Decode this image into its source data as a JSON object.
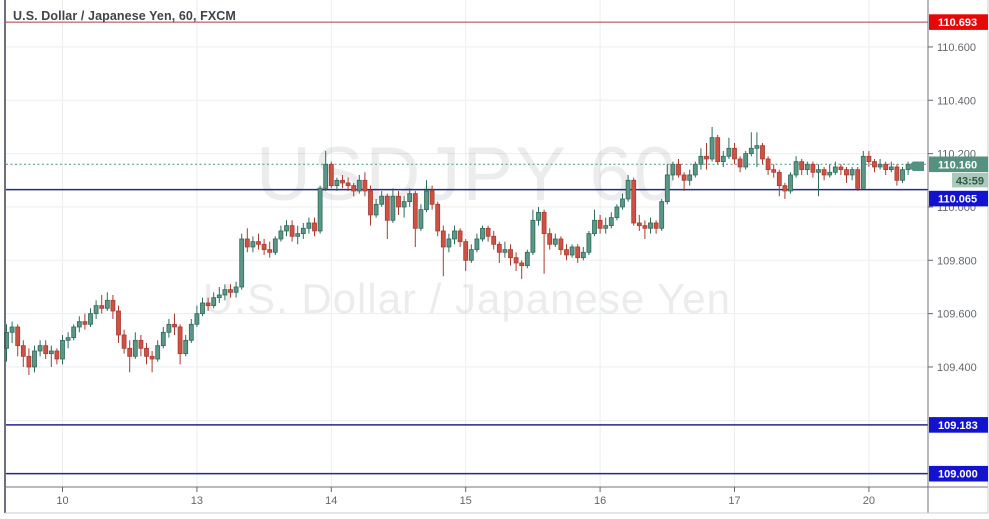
{
  "header": {
    "symbol_title": "U.S. Dollar / Japanese Yen, 60, FXCM"
  },
  "watermark": {
    "line1": "USDJPY 60",
    "line2": "U.S. Dollar / Japanese Yen"
  },
  "colors": {
    "bg": "#ffffff",
    "grid": "#ebedef",
    "axis_text": "#62666e",
    "axis_border": "#6f737e",
    "pane_left_border": "#494d57",
    "outer_border": "#c9ccd2",
    "watermark": "rgba(95,100,110,0.12)",
    "up_fill": "#5b9687",
    "up_stroke": "#2e6b5b",
    "down_fill": "#cf5144",
    "down_stroke": "#a83b31"
  },
  "chart_data": {
    "type": "candlestick",
    "symbol": "USDJPY",
    "interval": "60",
    "exchange": "FXCM",
    "title": "U.S. Dollar / Japanese Yen, 60, FXCM",
    "ylim": [
      108.95,
      110.776
    ],
    "ohlc_format": [
      "open",
      "high",
      "low",
      "close"
    ],
    "price_ticks": [
      {
        "label": "110.600",
        "price": 110.6,
        "show": true
      },
      {
        "label": "110.400",
        "price": 110.4,
        "show": true
      },
      {
        "label": "110.200",
        "price": 110.2,
        "show": true
      },
      {
        "label": "110.000",
        "price": 110.0,
        "show": true
      },
      {
        "label": "109.800",
        "price": 109.8,
        "show": true
      },
      {
        "label": "109.600",
        "price": 109.6,
        "show": true
      },
      {
        "label": "109.400",
        "price": 109.4,
        "show": true
      },
      {
        "label": "109.200",
        "price": 109.2,
        "show": false
      },
      {
        "label": "109.000",
        "price": 109.0,
        "show": false
      }
    ],
    "time_ticks": [
      {
        "label": "10",
        "index": 10
      },
      {
        "label": "13",
        "index": 34
      },
      {
        "label": "14",
        "index": 58
      },
      {
        "label": "15",
        "index": 82
      },
      {
        "label": "16",
        "index": 106
      },
      {
        "label": "17",
        "index": 130
      },
      {
        "label": "20",
        "index": 154
      }
    ],
    "last_price": {
      "value": 110.16,
      "label": "110.160",
      "line_color": "#55917f",
      "badge_bg": "#55917f",
      "badge_fg": "#ffffff",
      "countdown": {
        "label": "43:59",
        "bg": "#abc8ba",
        "fg": "#2c5948"
      }
    },
    "levels": [
      {
        "name": "alert-line",
        "price": 110.693,
        "line_color": "#b13b42",
        "line_style": "solid",
        "line_width": 1,
        "badge": {
          "label": "110.693",
          "bg": "#e60707",
          "fg": "#ffffff"
        },
        "badge_dy": 0
      },
      {
        "name": "level-line-110065",
        "price": 110.065,
        "line_color": "#26268c",
        "line_style": "solid",
        "line_width": 1.5,
        "badge": {
          "label": "110.065",
          "bg": "#1212cf",
          "fg": "#ffffff"
        },
        "badge_dy": 9
      },
      {
        "name": "level-line-109183",
        "price": 109.183,
        "line_color": "#26268c",
        "line_style": "solid",
        "line_width": 1.5,
        "badge": {
          "label": "109.183",
          "bg": "#1212cf",
          "fg": "#ffffff"
        },
        "badge_dy": 0
      },
      {
        "name": "level-line-109000",
        "price": 109.0,
        "line_color": "#26268c",
        "line_style": "solid",
        "line_width": 1.5,
        "badge": {
          "label": "109.000",
          "bg": "#1212cf",
          "fg": "#ffffff"
        },
        "badge_dy": 0
      }
    ],
    "ohlc": [
      [
        109.47,
        109.56,
        109.42,
        109.53
      ],
      [
        109.53,
        109.57,
        109.49,
        109.55
      ],
      [
        109.55,
        109.56,
        109.44,
        109.48
      ],
      [
        109.48,
        109.5,
        109.4,
        109.44
      ],
      [
        109.44,
        109.47,
        109.37,
        109.4
      ],
      [
        109.4,
        109.48,
        109.38,
        109.46
      ],
      [
        109.46,
        109.5,
        109.44,
        109.48
      ],
      [
        109.48,
        109.5,
        109.43,
        109.45
      ],
      [
        109.45,
        109.48,
        109.4,
        109.46
      ],
      [
        109.46,
        109.47,
        109.41,
        109.43
      ],
      [
        109.43,
        109.52,
        109.41,
        109.5
      ],
      [
        109.5,
        109.53,
        109.47,
        109.51
      ],
      [
        109.51,
        109.56,
        109.5,
        109.55
      ],
      [
        109.55,
        109.59,
        109.53,
        109.57
      ],
      [
        109.57,
        109.6,
        109.54,
        109.56
      ],
      [
        109.56,
        109.62,
        109.55,
        109.6
      ],
      [
        109.6,
        109.65,
        109.58,
        109.63
      ],
      [
        109.63,
        109.67,
        109.6,
        109.62
      ],
      [
        109.62,
        109.68,
        109.61,
        109.65
      ],
      [
        109.65,
        109.67,
        109.58,
        109.61
      ],
      [
        109.61,
        109.63,
        109.49,
        109.52
      ],
      [
        109.52,
        109.54,
        109.45,
        109.47
      ],
      [
        109.47,
        109.5,
        109.38,
        109.44
      ],
      [
        109.44,
        109.53,
        109.43,
        109.5
      ],
      [
        109.5,
        109.52,
        109.44,
        109.47
      ],
      [
        109.47,
        109.49,
        109.41,
        109.44
      ],
      [
        109.44,
        109.46,
        109.38,
        109.43
      ],
      [
        109.43,
        109.5,
        109.42,
        109.48
      ],
      [
        109.48,
        109.55,
        109.47,
        109.53
      ],
      [
        109.53,
        109.58,
        109.51,
        109.56
      ],
      [
        109.56,
        109.6,
        109.52,
        109.55
      ],
      [
        109.55,
        109.56,
        109.41,
        109.45
      ],
      [
        109.45,
        109.52,
        109.44,
        109.5
      ],
      [
        109.5,
        109.58,
        109.49,
        109.56
      ],
      [
        109.56,
        109.63,
        109.55,
        109.6
      ],
      [
        109.6,
        109.66,
        109.59,
        109.64
      ],
      [
        109.64,
        109.66,
        109.61,
        109.63
      ],
      [
        109.63,
        109.68,
        109.62,
        109.66
      ],
      [
        109.66,
        109.7,
        109.64,
        109.67
      ],
      [
        109.67,
        109.71,
        109.65,
        109.69
      ],
      [
        109.69,
        109.71,
        109.66,
        109.68
      ],
      [
        109.68,
        109.72,
        109.66,
        109.7
      ],
      [
        109.7,
        109.9,
        109.69,
        109.88
      ],
      [
        109.88,
        109.92,
        109.83,
        109.85
      ],
      [
        109.85,
        109.89,
        109.83,
        109.87
      ],
      [
        109.87,
        109.9,
        109.84,
        109.86
      ],
      [
        109.86,
        109.88,
        109.82,
        109.84
      ],
      [
        109.84,
        109.87,
        109.81,
        109.83
      ],
      [
        109.83,
        109.89,
        109.82,
        109.88
      ],
      [
        109.88,
        109.93,
        109.87,
        109.91
      ],
      [
        109.91,
        109.95,
        109.89,
        109.93
      ],
      [
        109.93,
        109.95,
        109.87,
        109.89
      ],
      [
        109.89,
        109.93,
        109.86,
        109.9
      ],
      [
        109.9,
        109.94,
        109.88,
        109.92
      ],
      [
        109.92,
        109.96,
        109.9,
        109.94
      ],
      [
        109.94,
        109.96,
        109.89,
        109.91
      ],
      [
        109.91,
        110.08,
        109.9,
        110.07
      ],
      [
        110.07,
        110.21,
        110.06,
        110.16
      ],
      [
        110.16,
        110.17,
        110.07,
        110.08
      ],
      [
        110.08,
        110.11,
        110.06,
        110.1
      ],
      [
        110.1,
        110.12,
        110.07,
        110.09
      ],
      [
        110.09,
        110.11,
        110.06,
        110.08
      ],
      [
        110.08,
        110.09,
        110.04,
        110.06
      ],
      [
        110.06,
        110.12,
        110.05,
        110.1
      ],
      [
        110.1,
        110.13,
        110.04,
        110.06
      ],
      [
        110.06,
        110.08,
        109.93,
        109.97
      ],
      [
        109.97,
        110.03,
        109.96,
        110.01
      ],
      [
        110.01,
        110.06,
        110.0,
        110.04
      ],
      [
        110.04,
        110.05,
        109.88,
        109.95
      ],
      [
        109.95,
        110.07,
        109.94,
        110.04
      ],
      [
        110.04,
        110.06,
        109.97,
        110.0
      ],
      [
        110.0,
        110.04,
        109.96,
        110.02
      ],
      [
        110.02,
        110.07,
        110.0,
        110.05
      ],
      [
        110.05,
        110.06,
        109.85,
        109.92
      ],
      [
        109.92,
        110.01,
        109.91,
        109.99
      ],
      [
        109.99,
        110.1,
        109.98,
        110.06
      ],
      [
        110.06,
        110.08,
        109.99,
        110.01
      ],
      [
        110.01,
        110.02,
        109.89,
        109.91
      ],
      [
        109.91,
        109.93,
        109.74,
        109.85
      ],
      [
        109.85,
        109.9,
        109.83,
        109.88
      ],
      [
        109.88,
        109.93,
        109.86,
        109.91
      ],
      [
        109.91,
        109.92,
        109.85,
        109.87
      ],
      [
        109.87,
        109.88,
        109.76,
        109.8
      ],
      [
        109.8,
        109.86,
        109.79,
        109.84
      ],
      [
        109.84,
        109.9,
        109.83,
        109.88
      ],
      [
        109.88,
        109.93,
        109.87,
        109.92
      ],
      [
        109.92,
        109.93,
        109.87,
        109.89
      ],
      [
        109.89,
        109.91,
        109.84,
        109.86
      ],
      [
        109.86,
        109.87,
        109.79,
        109.83
      ],
      [
        109.83,
        109.87,
        109.81,
        109.84
      ],
      [
        109.84,
        109.86,
        109.78,
        109.81
      ],
      [
        109.81,
        109.83,
        109.76,
        109.79
      ],
      [
        109.79,
        109.8,
        109.73,
        109.78
      ],
      [
        109.78,
        109.84,
        109.77,
        109.83
      ],
      [
        109.83,
        109.99,
        109.82,
        109.95
      ],
      [
        109.95,
        110.0,
        109.93,
        109.98
      ],
      [
        109.98,
        109.99,
        109.75,
        109.9
      ],
      [
        109.9,
        109.92,
        109.84,
        109.86
      ],
      [
        109.86,
        109.9,
        109.85,
        109.88
      ],
      [
        109.88,
        109.89,
        109.82,
        109.84
      ],
      [
        109.84,
        109.86,
        109.8,
        109.82
      ],
      [
        109.82,
        109.86,
        109.81,
        109.85
      ],
      [
        109.85,
        109.86,
        109.79,
        109.81
      ],
      [
        109.81,
        109.85,
        109.8,
        109.83
      ],
      [
        109.83,
        109.91,
        109.82,
        109.9
      ],
      [
        109.9,
        109.99,
        109.89,
        109.95
      ],
      [
        109.95,
        109.97,
        109.9,
        109.92
      ],
      [
        109.92,
        109.96,
        109.9,
        109.93
      ],
      [
        109.93,
        109.98,
        109.92,
        109.96
      ],
      [
        109.96,
        110.01,
        109.95,
        110.0
      ],
      [
        110.0,
        110.05,
        109.99,
        110.03
      ],
      [
        110.03,
        110.12,
        110.02,
        110.1
      ],
      [
        110.1,
        110.11,
        109.93,
        109.94
      ],
      [
        109.94,
        109.97,
        109.91,
        109.93
      ],
      [
        109.93,
        109.95,
        109.88,
        109.92
      ],
      [
        109.92,
        109.96,
        109.9,
        109.94
      ],
      [
        109.94,
        109.95,
        109.9,
        109.92
      ],
      [
        109.92,
        110.03,
        109.91,
        110.02
      ],
      [
        110.02,
        110.16,
        110.01,
        110.12
      ],
      [
        110.12,
        110.17,
        110.1,
        110.16
      ],
      [
        110.16,
        110.18,
        110.11,
        110.12
      ],
      [
        110.12,
        110.13,
        110.06,
        110.1
      ],
      [
        110.1,
        110.14,
        110.08,
        110.12
      ],
      [
        110.12,
        110.17,
        110.11,
        110.16
      ],
      [
        110.16,
        110.22,
        110.14,
        110.19
      ],
      [
        110.19,
        110.24,
        110.14,
        110.18
      ],
      [
        110.18,
        110.3,
        110.17,
        110.26
      ],
      [
        110.26,
        110.27,
        110.16,
        110.17
      ],
      [
        110.17,
        110.21,
        110.15,
        110.19
      ],
      [
        110.19,
        110.26,
        110.18,
        110.22
      ],
      [
        110.22,
        110.24,
        110.16,
        110.18
      ],
      [
        110.18,
        110.19,
        110.13,
        110.15
      ],
      [
        110.15,
        110.21,
        110.14,
        110.2
      ],
      [
        110.2,
        110.28,
        110.19,
        110.22
      ],
      [
        110.22,
        110.28,
        110.15,
        110.23
      ],
      [
        110.23,
        110.24,
        110.16,
        110.18
      ],
      [
        110.18,
        110.19,
        110.12,
        110.14
      ],
      [
        110.14,
        110.16,
        110.11,
        110.13
      ],
      [
        110.13,
        110.14,
        110.04,
        110.08
      ],
      [
        110.08,
        110.09,
        110.03,
        110.06
      ],
      [
        110.06,
        110.13,
        110.05,
        110.12
      ],
      [
        110.12,
        110.19,
        110.11,
        110.17
      ],
      [
        110.17,
        110.18,
        110.12,
        110.14
      ],
      [
        110.14,
        110.17,
        110.12,
        110.16
      ],
      [
        110.16,
        110.17,
        110.11,
        110.13
      ],
      [
        110.13,
        110.16,
        110.04,
        110.14
      ],
      [
        110.14,
        110.15,
        110.1,
        110.12
      ],
      [
        110.12,
        110.16,
        110.11,
        110.13
      ],
      [
        110.13,
        110.17,
        110.12,
        110.15
      ],
      [
        110.15,
        110.16,
        110.12,
        110.14
      ],
      [
        110.14,
        110.15,
        110.09,
        110.12
      ],
      [
        110.12,
        110.15,
        110.1,
        110.14
      ],
      [
        110.14,
        110.15,
        110.06,
        110.07
      ],
      [
        110.07,
        110.21,
        110.07,
        110.19
      ],
      [
        110.19,
        110.21,
        110.15,
        110.17
      ],
      [
        110.17,
        110.18,
        110.13,
        110.15
      ],
      [
        110.15,
        110.18,
        110.14,
        110.16
      ],
      [
        110.16,
        110.17,
        110.12,
        110.14
      ],
      [
        110.14,
        110.17,
        110.13,
        110.15
      ],
      [
        110.15,
        110.16,
        110.08,
        110.1
      ],
      [
        110.1,
        110.15,
        110.09,
        110.14
      ],
      [
        110.14,
        110.17,
        110.12,
        110.16
      ]
    ]
  }
}
